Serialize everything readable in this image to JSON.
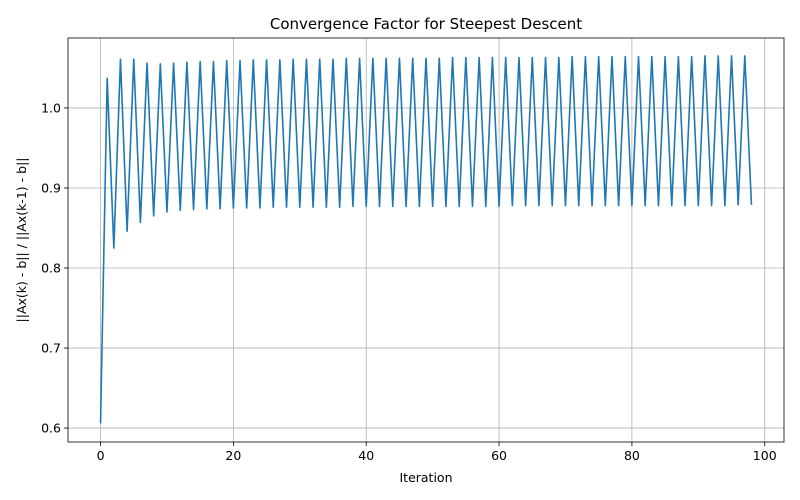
{
  "chart_data": {
    "type": "line",
    "title": "Convergence Factor for Steepest Descent",
    "xlabel": "Iteration",
    "ylabel": "||Ax(k) - b|| / ||Ax(k-1) - b||",
    "xlim": [
      -4.9,
      102.9
    ],
    "ylim": [
      0.5826,
      1.0874
    ],
    "xticks": [
      0,
      20,
      40,
      60,
      80,
      100
    ],
    "yticks": [
      0.6,
      0.7,
      0.8,
      0.9,
      1.0
    ],
    "xtick_labels": [
      "0",
      "20",
      "40",
      "60",
      "80",
      "100"
    ],
    "ytick_labels": [
      "0.6",
      "0.7",
      "0.8",
      "0.9",
      "1.0"
    ],
    "grid": true,
    "series": [
      {
        "color": "#1f77b4",
        "x": [
          0,
          1,
          2,
          3,
          4,
          5,
          6,
          7,
          8,
          9,
          10,
          11,
          12,
          13,
          14,
          15,
          16,
          17,
          18,
          19,
          20,
          21,
          22,
          23,
          24,
          25,
          26,
          27,
          28,
          29,
          30,
          31,
          32,
          33,
          34,
          35,
          36,
          37,
          38,
          39,
          40,
          41,
          42,
          43,
          44,
          45,
          46,
          47,
          48,
          49,
          50,
          51,
          52,
          53,
          54,
          55,
          56,
          57,
          58,
          59,
          60,
          61,
          62,
          63,
          64,
          65,
          66,
          67,
          68,
          69,
          70,
          71,
          72,
          73,
          74,
          75,
          76,
          77,
          78,
          79,
          80,
          81,
          82,
          83,
          84,
          85,
          86,
          87,
          88,
          89,
          90,
          91,
          92,
          93,
          94,
          95,
          96,
          97,
          98
        ],
        "y": [
          0.606,
          1.037,
          0.825,
          1.061,
          0.846,
          1.061,
          0.857,
          1.056,
          0.865,
          1.055,
          0.87,
          1.056,
          0.872,
          1.057,
          0.873,
          1.058,
          0.874,
          1.058,
          0.874,
          1.059,
          0.875,
          1.059,
          0.875,
          1.06,
          0.875,
          1.06,
          0.876,
          1.06,
          0.876,
          1.061,
          0.876,
          1.061,
          0.876,
          1.061,
          0.876,
          1.061,
          0.876,
          1.062,
          0.877,
          1.062,
          0.877,
          1.062,
          0.877,
          1.062,
          0.877,
          1.062,
          0.877,
          1.062,
          0.877,
          1.062,
          0.877,
          1.062,
          0.877,
          1.063,
          0.877,
          1.063,
          0.877,
          1.063,
          0.877,
          1.063,
          0.877,
          1.063,
          0.878,
          1.063,
          0.878,
          1.063,
          0.878,
          1.063,
          0.878,
          1.063,
          0.878,
          1.064,
          0.878,
          1.064,
          0.878,
          1.064,
          0.878,
          1.064,
          0.878,
          1.064,
          0.878,
          1.064,
          0.878,
          1.064,
          0.878,
          1.064,
          0.878,
          1.064,
          0.878,
          1.064,
          0.878,
          1.065,
          0.878,
          1.065,
          0.878,
          1.065,
          0.879,
          1.065,
          0.879
        ]
      }
    ]
  }
}
